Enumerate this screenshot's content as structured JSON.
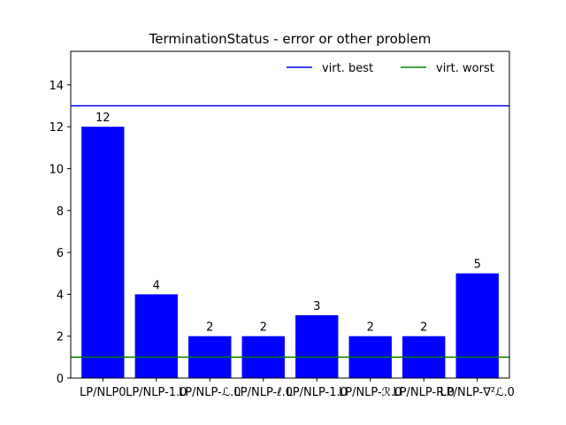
{
  "chart_data": {
    "type": "bar",
    "title": "TerminationStatus - error or other problem",
    "xlabel": "",
    "ylabel": "",
    "categories": [
      "LP/NLP0",
      "LP/NLP-1.0",
      "LP/NLP-ℒ.0",
      "LP/NLP-ℓ.0",
      "LP/NLP-1.0",
      "LP/NLP-ℛ.0",
      "LP/NLP-R.0",
      "LP/NLP-∇²ℒ.0"
    ],
    "values": [
      12,
      4,
      2,
      2,
      3,
      2,
      2,
      5
    ],
    "data_labels": [
      "12",
      "4",
      "2",
      "2",
      "3",
      "2",
      "2",
      "5"
    ],
    "ylim": [
      0,
      15.6
    ],
    "yticks": [
      0,
      2,
      4,
      6,
      8,
      10,
      12,
      14
    ],
    "ytick_labels": [
      "0",
      "2",
      "4",
      "6",
      "8",
      "10",
      "12",
      "14"
    ],
    "bar_color": "#0000ff",
    "reference_lines": [
      {
        "name": "virt. best",
        "value": 13,
        "color": "#0000ff"
      },
      {
        "name": "virt. worst",
        "value": 1,
        "color": "#008000"
      }
    ],
    "legend_position": "top-right",
    "grid": false
  }
}
